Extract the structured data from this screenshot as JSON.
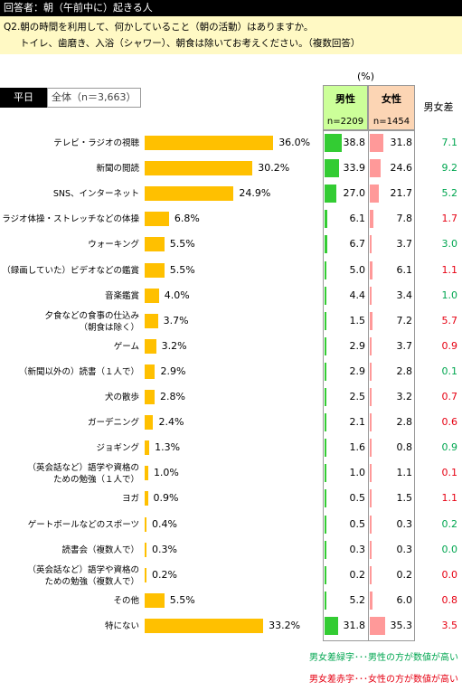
{
  "header": {
    "respondent": "回答者：朝（午前中に）起きる人",
    "question_line1": "Q2.朝の時間を利用して、何かしていること（朝の活動）はありますか。",
    "question_line2": "トイレ、歯磨き、入浴（シャワー）、朝食は除いてお考えください。（複数回答）"
  },
  "chart_data": {
    "type": "bar",
    "unit": "(%)",
    "tag_day": "平日",
    "tag_total": "全体（n＝3,663）",
    "male_label": "男性",
    "male_n": "n=2209",
    "female_label": "女性",
    "female_n": "n=1454",
    "diff_label": "男女差",
    "xlim": [
      0,
      40
    ],
    "categories": [
      [
        "テレビ・ラジオの視聴"
      ],
      [
        "新聞の閲読"
      ],
      [
        "SNS、インターネット"
      ],
      [
        "ラジオ体操・ストレッチなどの体操"
      ],
      [
        "ウォーキング"
      ],
      [
        "（録画していた）ビデオなどの鑑賞"
      ],
      [
        "音楽鑑賞"
      ],
      [
        "夕食などの食事の仕込み",
        "（朝食は除く）"
      ],
      [
        "ゲーム"
      ],
      [
        "（新聞以外の）読書（１人で）"
      ],
      [
        "犬の散歩"
      ],
      [
        "ガーデニング"
      ],
      [
        "ジョギング"
      ],
      [
        "（英会話など）語学や資格の",
        "ための勉強（１人で）"
      ],
      [
        "ヨガ"
      ],
      [
        "ゲートボールなどのスポーツ"
      ],
      [
        "読書会（複数人で）"
      ],
      [
        "（英会話など）語学や資格の",
        "ための勉強（複数人で）"
      ],
      [
        "その他"
      ],
      [
        "特にない"
      ]
    ],
    "total": [
      "36.0%",
      "30.2%",
      "24.9%",
      "6.8%",
      "5.5%",
      "5.5%",
      "4.0%",
      "3.7%",
      "3.2%",
      "2.9%",
      "2.8%",
      "2.4%",
      "1.3%",
      "1.0%",
      "0.9%",
      "0.4%",
      "0.3%",
      "0.2%",
      "5.5%",
      "33.2%"
    ],
    "male": [
      "38.8",
      "33.9",
      "27.0",
      "6.1",
      "6.7",
      "5.0",
      "4.4",
      "1.5",
      "2.9",
      "2.9",
      "2.5",
      "2.1",
      "1.6",
      "1.0",
      "0.5",
      "0.5",
      "0.3",
      "0.2",
      "5.2",
      "31.8"
    ],
    "female": [
      "31.8",
      "24.6",
      "21.7",
      "7.8",
      "3.7",
      "6.1",
      "3.4",
      "7.2",
      "3.7",
      "2.8",
      "3.2",
      "2.8",
      "0.8",
      "1.1",
      "1.5",
      "0.3",
      "0.3",
      "0.2",
      "6.0",
      "35.3"
    ],
    "diff": [
      "7.1",
      "9.2",
      "5.2",
      "1.7",
      "3.0",
      "1.1",
      "1.0",
      "5.7",
      "0.9",
      "0.1",
      "0.7",
      "0.6",
      "0.9",
      "0.1",
      "1.1",
      "0.2",
      "0.0",
      "0.0",
      "0.8",
      "3.5"
    ],
    "diff_color": [
      "green",
      "green",
      "green",
      "red",
      "green",
      "red",
      "green",
      "red",
      "red",
      "green",
      "red",
      "red",
      "green",
      "red",
      "red",
      "green",
      "green",
      "red",
      "red",
      "red"
    ],
    "colors": {
      "total": "#ffc000",
      "male": "#33cc33",
      "female": "#ff9999",
      "green": "#00a650",
      "red": "#e60012"
    }
  },
  "footnotes": {
    "green": "男女差緑字･･･男性の方が数値が高い",
    "red": "男女差赤字･･･女性の方が数値が高い"
  }
}
